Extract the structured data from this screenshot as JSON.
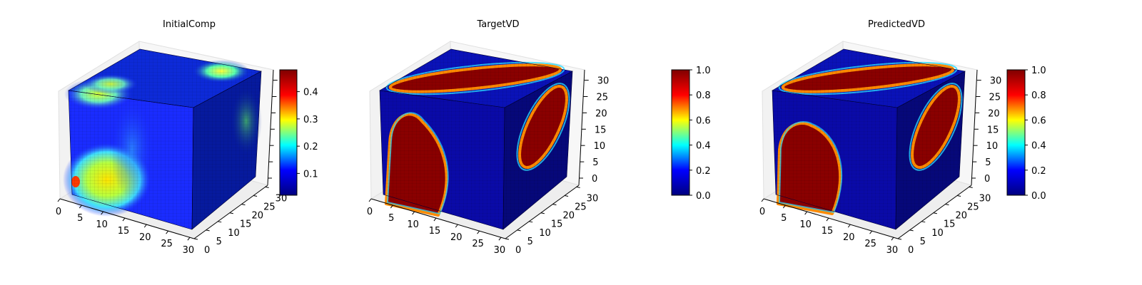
{
  "figure": {
    "colormap": "jet",
    "colormap_stops": [
      "#00007f",
      "#0000ff",
      "#00ffff",
      "#ffff00",
      "#ff0000",
      "#7f0000"
    ]
  },
  "chart_data": [
    {
      "type": "heatmap",
      "title": "InitialComp",
      "grid": "32x32x32 voxels",
      "x_ticks": [
        "0",
        "5",
        "10",
        "15",
        "20",
        "25",
        "30"
      ],
      "y_ticks": [
        "0",
        "5",
        "10",
        "15",
        "20",
        "25",
        "30"
      ],
      "z_ticks": [],
      "colorbar": {
        "range": [
          0.02,
          0.48
        ],
        "ticks": [
          "0.1",
          "0.2",
          "0.3",
          "0.4"
        ],
        "tick_values": [
          0.1,
          0.2,
          0.3,
          0.4
        ]
      },
      "value_range": [
        0.02,
        0.48
      ]
    },
    {
      "type": "heatmap",
      "title": "TargetVD",
      "grid": "32x32x32 voxels",
      "x_ticks": [
        "0",
        "5",
        "10",
        "15",
        "20",
        "25",
        "30"
      ],
      "y_ticks": [
        "0",
        "5",
        "10",
        "15",
        "20",
        "25",
        "30"
      ],
      "z_ticks": [
        "0",
        "5",
        "10",
        "15",
        "20",
        "25",
        "30"
      ],
      "colorbar": {
        "range": [
          0.0,
          1.0
        ],
        "ticks": [
          "0.0",
          "0.2",
          "0.4",
          "0.6",
          "0.8",
          "1.0"
        ],
        "tick_values": [
          0.0,
          0.2,
          0.4,
          0.6,
          0.8,
          1.0
        ]
      },
      "value_range": [
        0.0,
        1.0
      ]
    },
    {
      "type": "heatmap",
      "title": "PredictedVD",
      "grid": "32x32x32 voxels",
      "x_ticks": [
        "0",
        "5",
        "10",
        "15",
        "20",
        "25",
        "30"
      ],
      "y_ticks": [
        "0",
        "5",
        "10",
        "15",
        "20",
        "25",
        "30"
      ],
      "z_ticks": [
        "0",
        "5",
        "10",
        "15",
        "20",
        "25",
        "30"
      ],
      "colorbar": {
        "range": [
          0.0,
          1.0
        ],
        "ticks": [
          "0.0",
          "0.2",
          "0.4",
          "0.6",
          "0.8",
          "1.0"
        ],
        "tick_values": [
          0.0,
          0.2,
          0.4,
          0.6,
          0.8,
          1.0
        ]
      },
      "value_range": [
        0.0,
        1.0
      ]
    }
  ]
}
